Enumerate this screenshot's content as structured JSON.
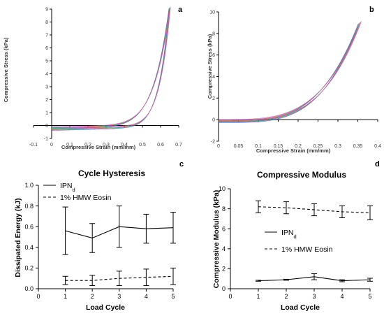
{
  "chart_data": [
    {
      "panel": "a",
      "type": "line",
      "xlabel": "Compressive Strain (mm/mm)",
      "ylabel": "Compressive Stress (kPa)",
      "xlim": [
        -0.1,
        0.7
      ],
      "ylim": [
        -1,
        9
      ],
      "xticks": [
        "-0.1",
        "0",
        "0.1",
        "0.2",
        "0.3",
        "0.4",
        "0.5",
        "0.6",
        "0.7"
      ],
      "yticks": [
        "-1",
        "0",
        "1",
        "2",
        "3",
        "4",
        "5",
        "6",
        "7",
        "8",
        "9"
      ],
      "peak_strain": 0.65,
      "peak_stress": 8.7,
      "cycle_colors": [
        "#8e44ad",
        "#2e86c1",
        "#27ae60",
        "#e74c3c",
        "#d35fd3"
      ]
    },
    {
      "panel": "b",
      "type": "line",
      "xlabel": "Compressive Strain (mm/mm)",
      "ylabel": "Compressive Stress (kPa)",
      "xlim": [
        0,
        0.4
      ],
      "ylim": [
        -2,
        10
      ],
      "xticks": [
        "0",
        "0.05",
        "0.1",
        "0.15",
        "0.2",
        "0.25",
        "0.3",
        "0.35",
        "0.4"
      ],
      "yticks": [
        "-2",
        "0",
        "2",
        "4",
        "6",
        "8",
        "10"
      ],
      "peak_strain": 0.355,
      "peak_stress": 9.0,
      "cycle_colors": [
        "#8e44ad",
        "#2e86c1",
        "#27ae60",
        "#e74c3c",
        "#d35fd3"
      ]
    },
    {
      "panel": "c",
      "type": "line",
      "title": "Cycle Hysteresis",
      "xlabel": "Load Cycle",
      "ylabel": "Dissipated Energy (kJ)",
      "xlim": [
        0,
        5
      ],
      "ylim": [
        0,
        1.0
      ],
      "xticks": [
        "0",
        "1",
        "2",
        "3",
        "4",
        "5"
      ],
      "yticks": [
        "0.0",
        "0.2",
        "0.4",
        "0.6",
        "0.8",
        "1.0"
      ],
      "x": [
        1,
        2,
        3,
        4,
        5
      ],
      "legend_position": "top-left",
      "series": [
        {
          "name": "IPN",
          "name_sub": "d",
          "style": "solid",
          "values": [
            0.56,
            0.49,
            0.6,
            0.58,
            0.59
          ],
          "errors": [
            0.23,
            0.14,
            0.2,
            0.14,
            0.15
          ]
        },
        {
          "name": "1% HMW Eosin",
          "style": "dashed",
          "values": [
            0.08,
            0.08,
            0.1,
            0.11,
            0.12
          ],
          "errors": [
            0.04,
            0.05,
            0.07,
            0.08,
            0.08
          ]
        }
      ]
    },
    {
      "panel": "d",
      "type": "line",
      "title": "Compressive Modulus",
      "xlabel": "Load Cycle",
      "ylabel": "Compressive Modulus (kPa)",
      "xlim": [
        0,
        5
      ],
      "ylim": [
        0,
        10
      ],
      "xticks": [
        "0",
        "1",
        "2",
        "3",
        "4",
        "5"
      ],
      "yticks": [
        "0",
        "2",
        "4",
        "6",
        "8",
        "10"
      ],
      "x": [
        1,
        2,
        3,
        4,
        5
      ],
      "legend_position": "center-left",
      "series": [
        {
          "name": "IPN",
          "name_sub": "d",
          "style": "solid",
          "values": [
            0.8,
            0.9,
            1.2,
            0.8,
            0.9
          ],
          "errors": [
            0.05,
            0.05,
            0.3,
            0.1,
            0.15
          ]
        },
        {
          "name": "1% HMW Eosin",
          "style": "dashed",
          "values": [
            8.2,
            8.1,
            7.9,
            7.7,
            7.6
          ],
          "errors": [
            0.6,
            0.6,
            0.6,
            0.6,
            0.7
          ]
        }
      ]
    }
  ]
}
